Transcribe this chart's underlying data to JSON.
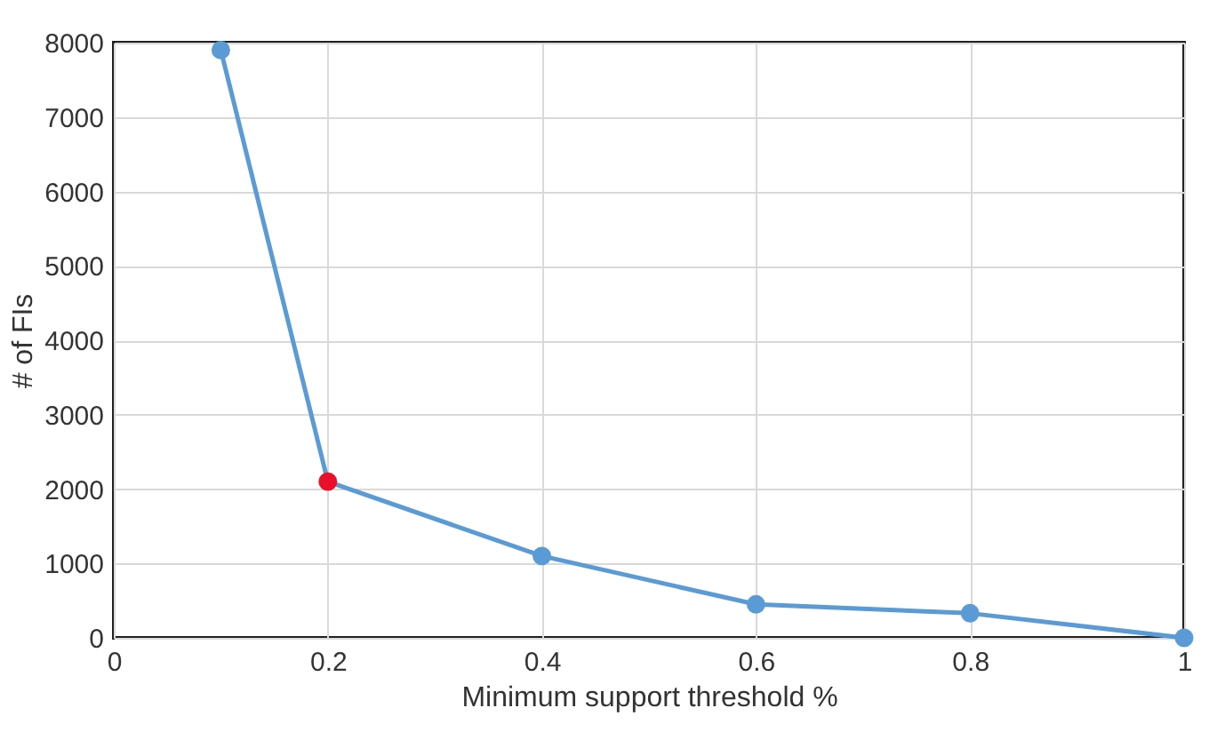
{
  "chart_data": {
    "type": "line",
    "xlabel": "Minimum support threshold %",
    "ylabel": "# of FIs",
    "x": [
      0.1,
      0.2,
      0.4,
      0.6,
      0.8,
      1
    ],
    "series": [
      {
        "color": "#5b9bd5",
        "colors": [
          "#5b9bd5",
          "#e8102a",
          "#5b9bd5",
          "#5b9bd5",
          "#5b9bd5",
          "#5b9bd5"
        ],
        "values": [
          7900,
          2100,
          1100,
          450,
          330,
          0
        ]
      }
    ],
    "xlim": [
      0,
      1
    ],
    "xticks": [
      0,
      0.2,
      0.4,
      0.6,
      0.8,
      1
    ],
    "ylim": [
      0,
      8000
    ],
    "yticks": [
      0,
      1000,
      2000,
      3000,
      4000,
      5000,
      6000,
      7000,
      8000
    ],
    "grid": true,
    "marker": "circle",
    "line_style": "solid"
  }
}
